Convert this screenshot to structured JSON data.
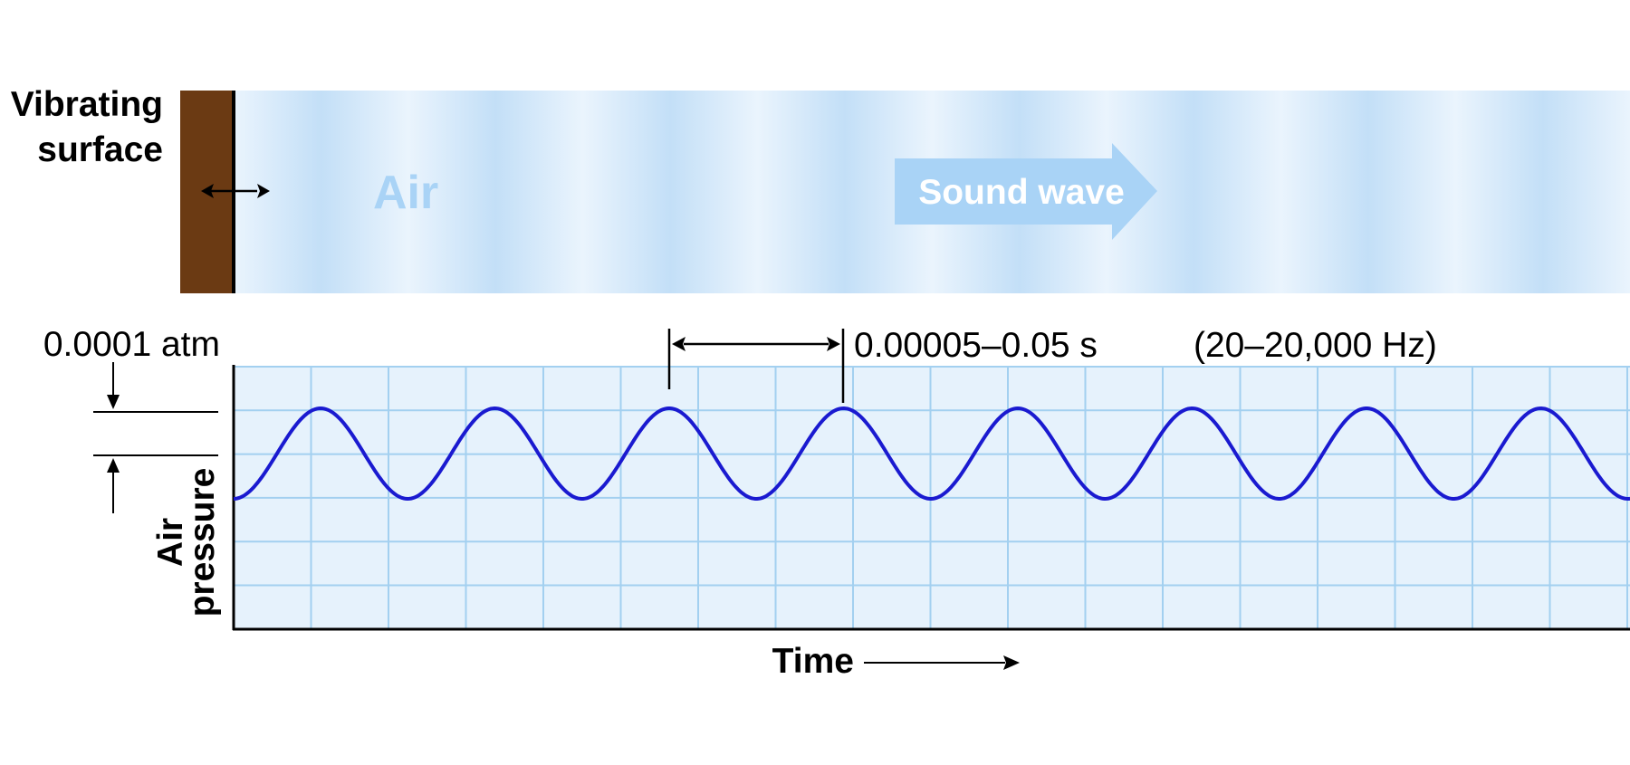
{
  "labels": {
    "vibrating_surface_line1": "Vibrating",
    "vibrating_surface_line2": "surface",
    "air": "Air",
    "sound_wave": "Sound wave",
    "amplitude": "0.0001 atm",
    "period": "0.00005–0.05 s",
    "frequency": "(20–20,000 Hz)",
    "ylabel_line1": "Air",
    "ylabel_line2": "pressure",
    "xlabel": "Time"
  },
  "colors": {
    "surface": "#6b3a13",
    "air_light": "#eaf4fd",
    "air_dark": "#c3dff7",
    "arrow_fill": "#a9d3f6",
    "air_text": "#a9d3f6",
    "grid_bg": "#e6f2fc",
    "grid_line": "#a3d0f0",
    "wave": "#1a1ad0",
    "ink": "#000000"
  },
  "wave": {
    "cycles_shown": 8,
    "crest_level": 2,
    "trough_level": 0
  }
}
